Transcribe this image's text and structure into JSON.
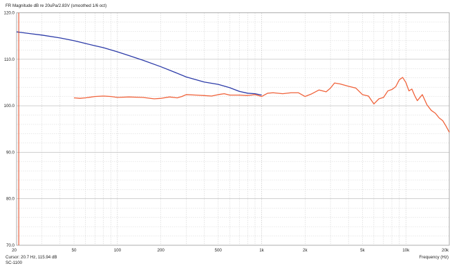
{
  "chart_data": {
    "type": "line",
    "title": "FR Magnitude dB re 20uPa/2.83V (smoothed 1/6 oct)",
    "xlabel": "Frequency (Hz)",
    "ylabel": "",
    "x_scale": "log",
    "xlim": [
      20,
      20000
    ],
    "ylim": [
      70,
      120
    ],
    "y_ticks": [
      "70.0",
      "80.0",
      "90.0",
      "100.0",
      "110.0",
      "120.0"
    ],
    "y_tick_values": [
      70,
      80,
      90,
      100,
      110,
      120
    ],
    "x_ticks": [
      "20",
      "50",
      "100",
      "200",
      "500",
      "1k",
      "2k",
      "5k",
      "10k",
      "20k"
    ],
    "x_tick_values": [
      20,
      50,
      100,
      200,
      500,
      1000,
      2000,
      5000,
      10000,
      20000
    ],
    "grid": true,
    "cursor": {
      "label": "Cursor: 20.7 Hz, 115.94 dB",
      "x": 20.7
    },
    "footnote": "SC-1100",
    "series": [
      {
        "color": "#2b3aa8",
        "x": [
          20,
          25,
          30,
          40,
          50,
          60,
          70,
          80,
          100,
          120,
          150,
          200,
          250,
          300,
          400,
          500,
          600,
          700,
          800,
          900,
          1000
        ],
        "y": [
          115.9,
          115.5,
          115.2,
          114.6,
          114.0,
          113.4,
          112.9,
          112.5,
          111.6,
          110.8,
          109.8,
          108.4,
          107.2,
          106.2,
          105.1,
          104.6,
          103.9,
          103.1,
          102.7,
          102.6,
          102.3
        ]
      },
      {
        "color": "#f0623a",
        "x": [
          50,
          55,
          60,
          70,
          80,
          90,
          100,
          120,
          150,
          180,
          200,
          230,
          260,
          280,
          300,
          350,
          400,
          450,
          500,
          550,
          600,
          700,
          800,
          900,
          1000,
          1100,
          1200,
          1400,
          1600,
          1800,
          2000,
          2200,
          2500,
          2800,
          3000,
          3200,
          3500,
          4000,
          4500,
          5000,
          5500,
          6000,
          6500,
          7000,
          7500,
          8000,
          8500,
          9000,
          9500,
          10000,
          10500,
          11000,
          11500,
          12000,
          13000,
          14000,
          15000,
          16000,
          17000,
          18000,
          19000,
          20000
        ],
        "y": [
          101.7,
          101.6,
          101.7,
          102.0,
          102.1,
          102.0,
          101.8,
          101.9,
          101.8,
          101.5,
          101.6,
          101.9,
          101.7,
          102.0,
          102.4,
          102.3,
          102.2,
          102.1,
          102.4,
          102.6,
          102.3,
          102.3,
          102.2,
          102.4,
          102.0,
          102.7,
          102.8,
          102.6,
          102.8,
          102.8,
          102.0,
          102.5,
          103.4,
          103.0,
          103.8,
          104.9,
          104.7,
          104.2,
          103.8,
          102.4,
          102.1,
          100.4,
          101.5,
          101.8,
          103.2,
          103.5,
          104.1,
          105.6,
          106.1,
          105.0,
          103.2,
          103.6,
          102.2,
          101.1,
          102.4,
          100.2,
          99.0,
          98.4,
          97.4,
          96.8,
          95.6,
          94.3
        ]
      }
    ]
  }
}
